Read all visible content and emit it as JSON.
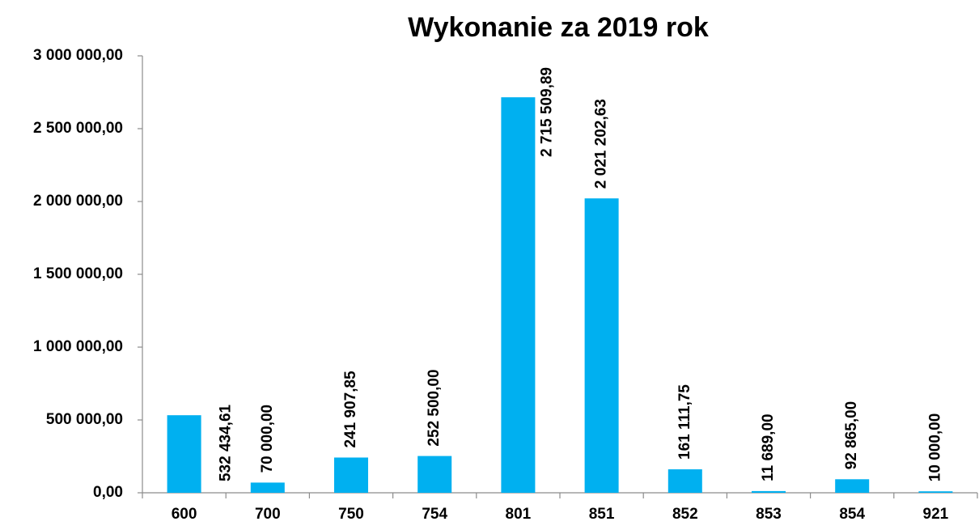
{
  "chart_data": {
    "type": "bar",
    "title": "Wykonanie za 2019 rok",
    "categories": [
      "600",
      "700",
      "750",
      "754",
      "801",
      "851",
      "852",
      "853",
      "854",
      "921"
    ],
    "values": [
      532434.61,
      70000,
      241907.85,
      252500,
      2715509.89,
      2021202.63,
      161111.75,
      11689,
      92865,
      10000
    ],
    "value_labels": [
      "532 434,61",
      "70 000,00",
      "241 907,85",
      "252 500,00",
      "2 715 509,89",
      "2 021 202,63",
      "161 111,75",
      "11 689,00",
      "92 865,00",
      "10 000,00"
    ],
    "color": "#00b0f0",
    "ylim": [
      0,
      3000000
    ],
    "yticks": [
      {
        "value": 0,
        "label": "0,00"
      },
      {
        "value": 500000,
        "label": "500 000,00"
      },
      {
        "value": 1000000,
        "label": "1 000 000,00"
      },
      {
        "value": 1500000,
        "label": "1 500 000,00"
      },
      {
        "value": 2000000,
        "label": "2 000 000,00"
      },
      {
        "value": 2500000,
        "label": "2 500 000,00"
      },
      {
        "value": 3000000,
        "label": "3 000 000,00"
      }
    ],
    "grid": false
  }
}
